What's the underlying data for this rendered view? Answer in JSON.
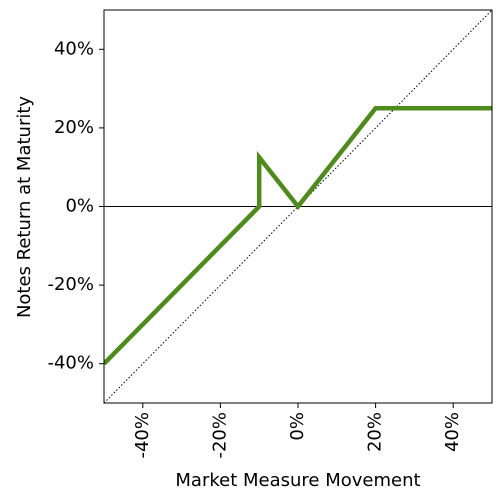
{
  "chart_data": {
    "type": "line",
    "xlabel": "Market Measure Movement",
    "ylabel": "Notes Return at Maturity",
    "xlim": [
      -50,
      50
    ],
    "ylim": [
      -50,
      50
    ],
    "xticks": [
      {
        "value": -40,
        "label": "-40%"
      },
      {
        "value": -20,
        "label": "-20%"
      },
      {
        "value": 0,
        "label": "0%"
      },
      {
        "value": 20,
        "label": "20%"
      },
      {
        "value": 40,
        "label": "40%"
      }
    ],
    "yticks": [
      {
        "value": -40,
        "label": "-40%"
      },
      {
        "value": -20,
        "label": "-20%"
      },
      {
        "value": 0,
        "label": "0%"
      },
      {
        "value": 20,
        "label": "20%"
      },
      {
        "value": 40,
        "label": "40%"
      }
    ],
    "zero_line": true,
    "series": [
      {
        "color": "#4f8a1c",
        "x": [
          -50,
          -10,
          -10,
          0,
          20,
          50
        ],
        "values": [
          -40,
          0,
          12.5,
          0,
          25,
          25
        ],
        "style": "solid"
      },
      {
        "color": "#000000",
        "x": [
          -50,
          50
        ],
        "values": [
          -50,
          50
        ],
        "style": "dotted"
      }
    ]
  }
}
